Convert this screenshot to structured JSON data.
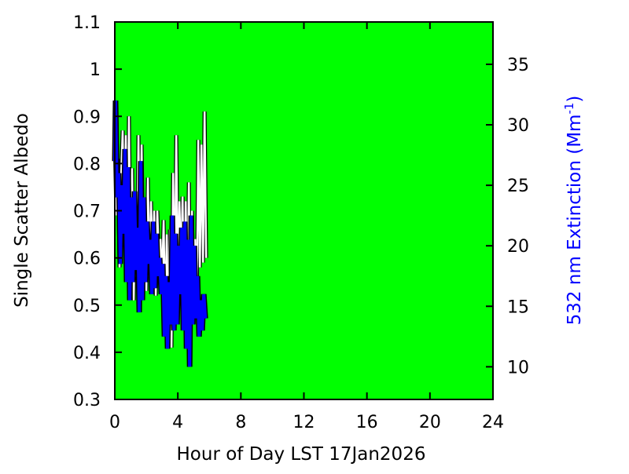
{
  "chart_data": {
    "type": "line",
    "xlabel": "Hour of Day LST 17Jan2026",
    "ylabel": "Single Scatter Albedo",
    "y2label_main": "532 nm Extinction (Mm",
    "y2label_sup": "-1",
    "y2label_close": ")",
    "xlim": [
      0,
      24
    ],
    "ylim": [
      0.3,
      1.1
    ],
    "y2lim": [
      7.3,
      38.5
    ],
    "x_ticks": [
      0,
      4,
      8,
      12,
      16,
      20,
      24
    ],
    "y_ticks": [
      0.3,
      0.4,
      0.5,
      0.6,
      0.7,
      0.8,
      0.9,
      1,
      1.1
    ],
    "y_tick_labels": [
      "0.3",
      "0.4",
      "0.5",
      "0.6",
      "0.7",
      "0.8",
      "0.9",
      "1",
      "1.1"
    ],
    "y2_ticks": [
      10,
      15,
      20,
      25,
      30,
      35
    ],
    "background_color": "#00ff00",
    "grid": false,
    "series": [
      {
        "color": "#ffffff",
        "outline": "#000000",
        "axis": "left",
        "x": [
          0.0,
          0.1,
          0.2,
          0.3,
          0.4,
          0.5,
          0.6,
          0.7,
          0.8,
          0.9,
          1.0,
          1.1,
          1.2,
          1.3,
          1.4,
          1.5,
          1.6,
          1.7,
          1.8,
          1.9,
          2.0,
          2.1,
          2.2,
          2.3,
          2.4,
          2.5,
          2.6,
          2.7,
          2.8,
          2.9,
          3.0,
          3.1,
          3.2,
          3.3,
          3.4,
          3.5,
          3.6,
          3.7,
          3.8,
          3.9,
          4.0,
          4.1,
          4.2,
          4.3,
          4.4,
          4.5,
          4.6,
          4.7,
          4.8,
          4.9,
          5.0,
          5.1,
          5.2,
          5.3,
          5.4,
          5.5,
          5.6,
          5.7,
          5.8
        ],
        "values": [
          0.86,
          0.69,
          0.81,
          0.58,
          0.77,
          0.87,
          0.62,
          0.86,
          0.55,
          0.9,
          0.6,
          0.79,
          0.51,
          0.73,
          0.56,
          0.86,
          0.52,
          0.84,
          0.59,
          0.67,
          0.53,
          0.77,
          0.56,
          0.72,
          0.58,
          0.7,
          0.52,
          0.7,
          0.6,
          0.64,
          0.55,
          0.68,
          0.47,
          0.65,
          0.42,
          0.66,
          0.41,
          0.78,
          0.52,
          0.86,
          0.55,
          0.72,
          0.58,
          0.73,
          0.45,
          0.72,
          0.47,
          0.76,
          0.43,
          0.7,
          0.46,
          0.64,
          0.5,
          0.85,
          0.58,
          0.84,
          0.59,
          0.91,
          0.6
        ]
      },
      {
        "color": "#0000ff",
        "outline": "#000000",
        "axis": "right",
        "x": [
          0.0,
          0.05,
          0.15,
          0.25,
          0.35,
          0.45,
          0.55,
          0.65,
          0.75,
          0.85,
          0.95,
          1.05,
          1.15,
          1.25,
          1.35,
          1.45,
          1.55,
          1.65,
          1.75,
          1.85,
          1.95,
          2.05,
          2.15,
          2.25,
          2.35,
          2.45,
          2.55,
          2.65,
          2.75,
          2.85,
          2.95,
          3.05,
          3.15,
          3.25,
          3.35,
          3.45,
          3.55,
          3.65,
          3.75,
          3.85,
          3.95,
          4.05,
          4.15,
          4.25,
          4.35,
          4.45,
          4.55,
          4.65,
          4.75,
          4.85,
          4.95,
          5.05,
          5.15,
          5.25,
          5.35,
          5.45,
          5.55,
          5.65,
          5.75
        ],
        "values": [
          27.0,
          32.0,
          24.0,
          26.0,
          18.5,
          25.0,
          21.0,
          28.0,
          17.0,
          26.5,
          15.5,
          24.0,
          17.0,
          24.5,
          18.0,
          21.5,
          14.5,
          27.0,
          15.5,
          24.0,
          17.0,
          22.0,
          18.5,
          20.5,
          16.0,
          22.0,
          16.5,
          21.0,
          17.5,
          19.0,
          16.0,
          18.5,
          12.5,
          17.5,
          11.5,
          17.0,
          13.5,
          22.5,
          13.0,
          21.0,
          13.5,
          20.0,
          16.0,
          21.5,
          13.0,
          22.0,
          11.5,
          20.5,
          10.0,
          22.5,
          13.5,
          20.0,
          14.0,
          17.5,
          12.5,
          15.5,
          13.0,
          16.0,
          14.0
        ]
      }
    ]
  }
}
